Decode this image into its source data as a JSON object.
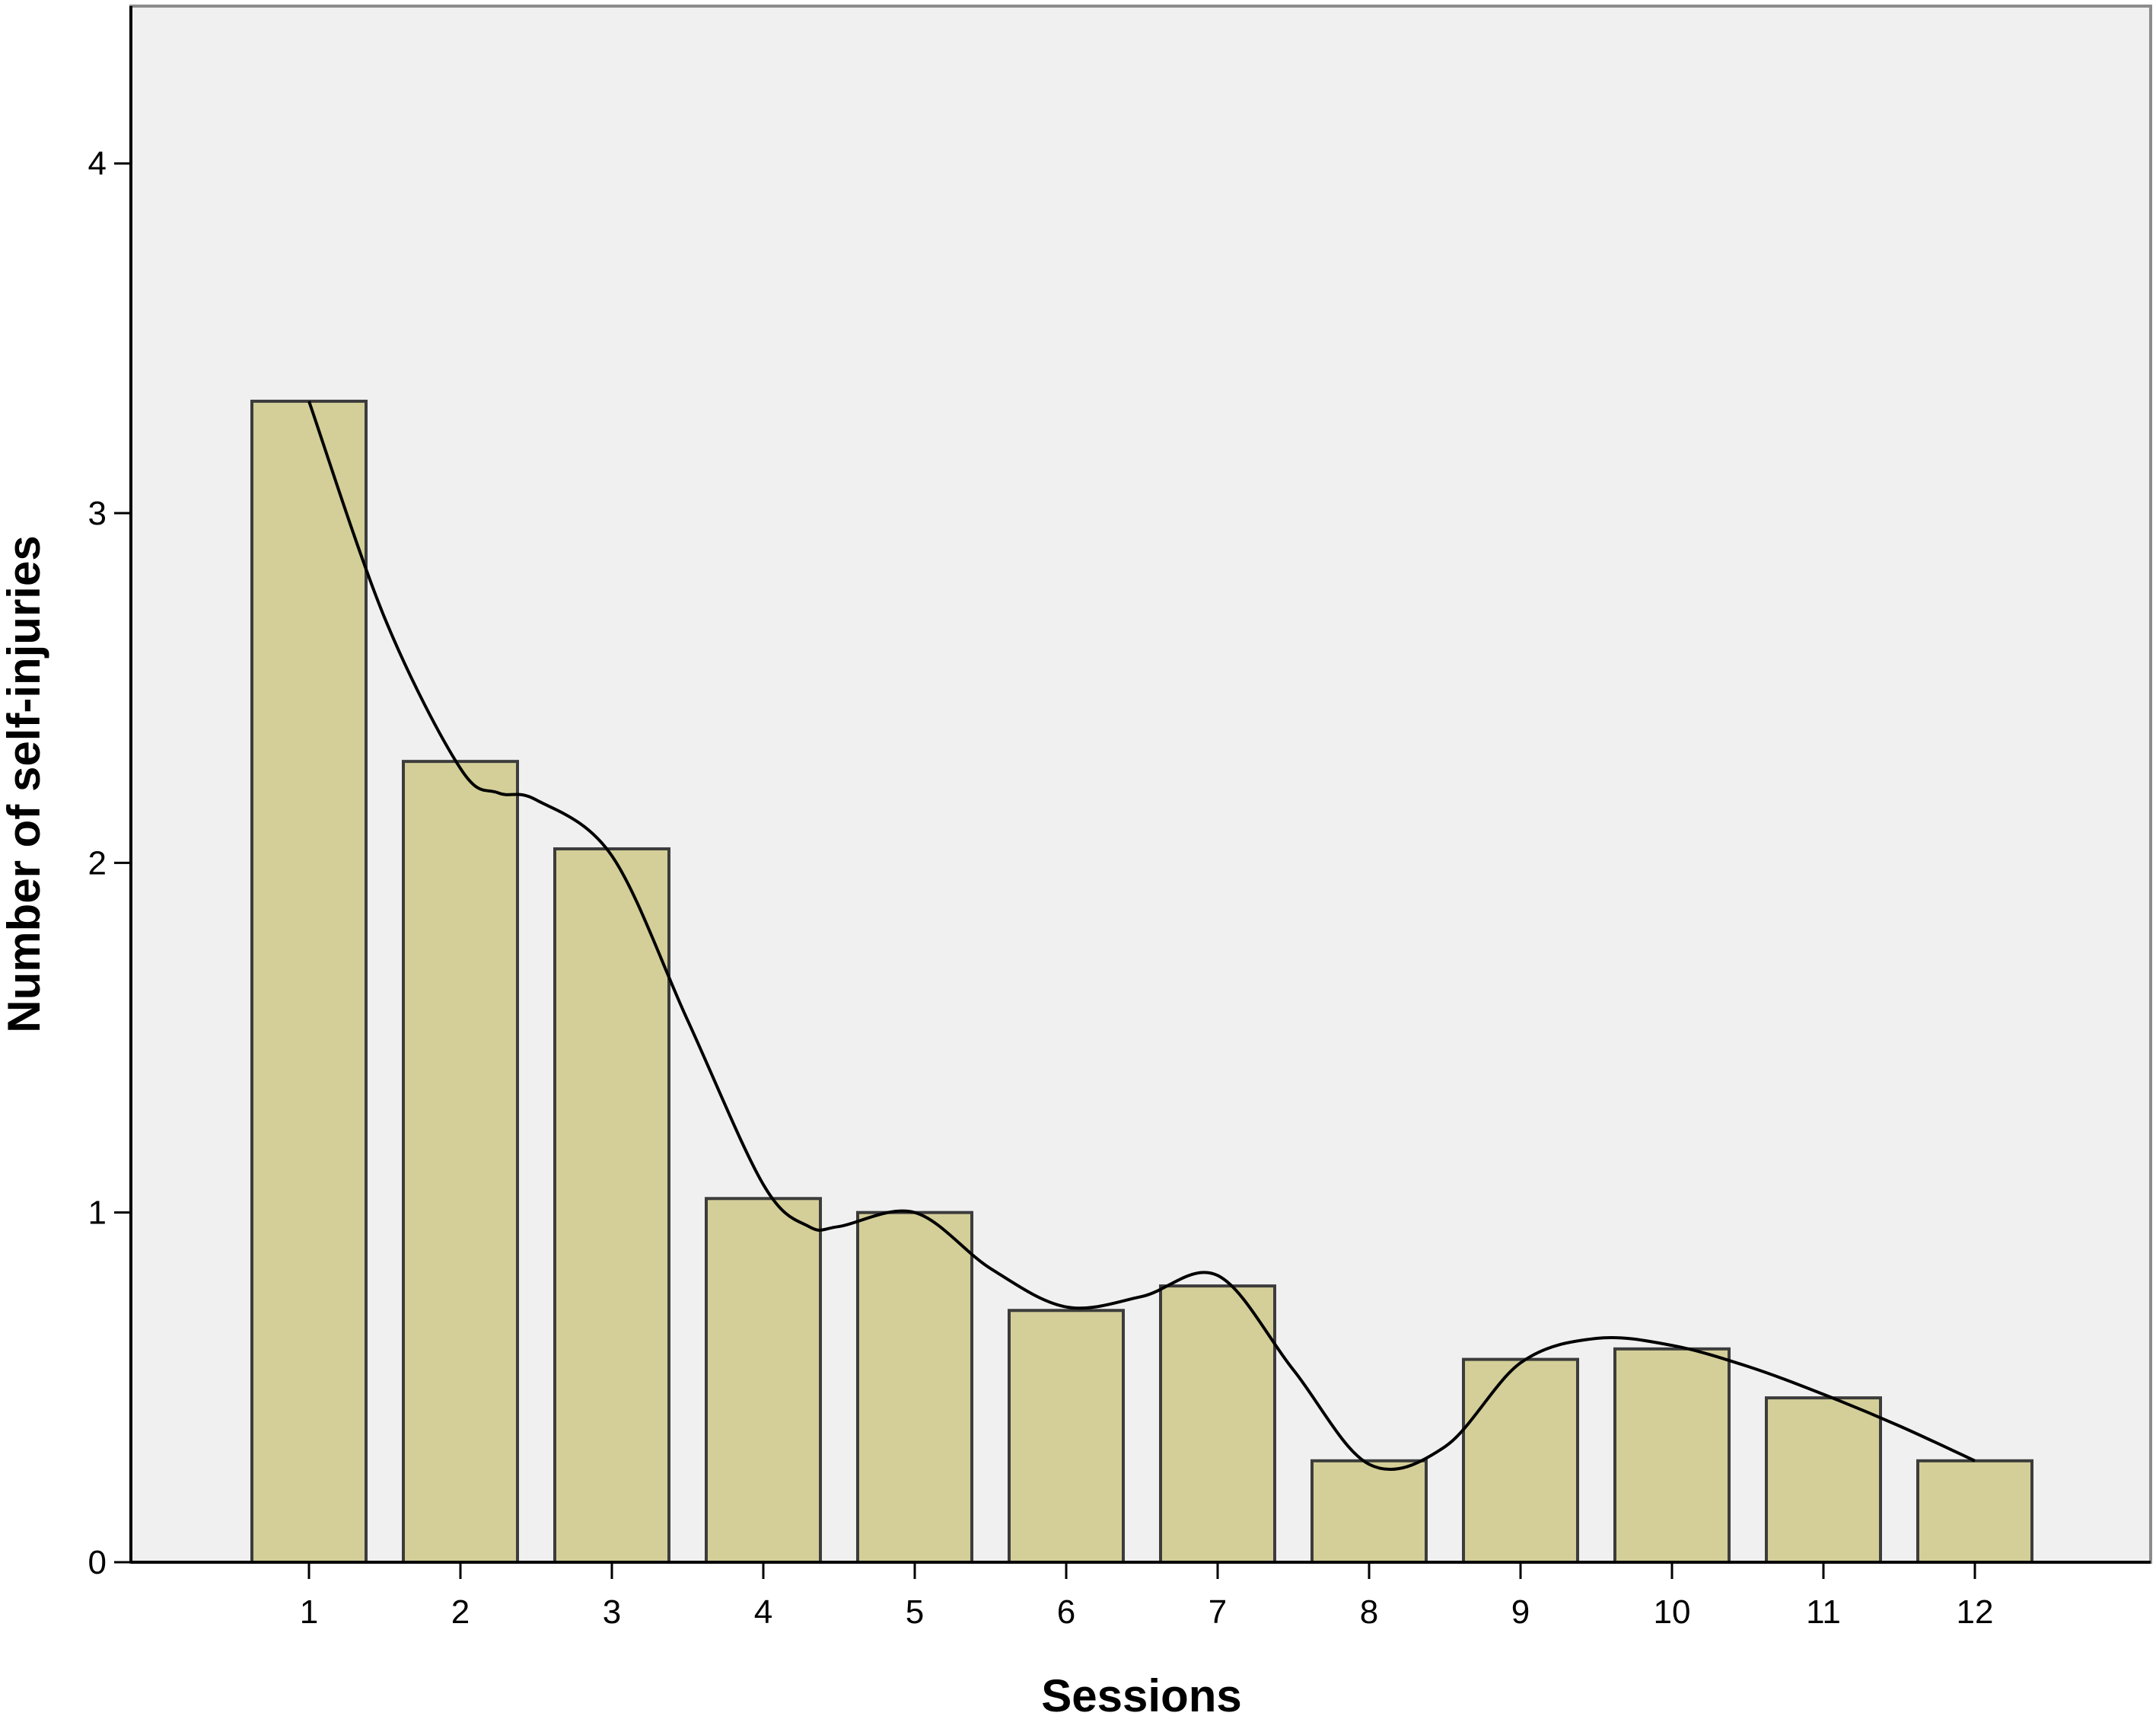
{
  "chart_data": {
    "type": "bar",
    "title": "",
    "xlabel": "Sessions",
    "ylabel": "Number of self-injuries",
    "categories": [
      "1",
      "2",
      "3",
      "4",
      "5",
      "6",
      "7",
      "8",
      "9",
      "10",
      "11",
      "12"
    ],
    "values": [
      3.32,
      2.29,
      2.04,
      1.04,
      1.0,
      0.72,
      0.79,
      0.29,
      0.58,
      0.61,
      0.47,
      0.29
    ],
    "ylim": [
      0,
      4.45
    ],
    "yticks": [
      "0",
      "1",
      "2",
      "3",
      "4"
    ],
    "grid": false,
    "legend": "none",
    "smooth_line": {
      "x": [
        1,
        1.5,
        2,
        2.25,
        2.5,
        3,
        3.5,
        4,
        4.3,
        4.5,
        5,
        5.5,
        6,
        6.5,
        7,
        7.5,
        8,
        8.5,
        9,
        9.5,
        10,
        10.5,
        11,
        11.5,
        12
      ],
      "y": [
        3.32,
        2.7,
        2.27,
        2.2,
        2.18,
        2.02,
        1.55,
        1.08,
        0.96,
        0.96,
        1.0,
        0.84,
        0.73,
        0.76,
        0.82,
        0.55,
        0.28,
        0.33,
        0.57,
        0.64,
        0.62,
        0.56,
        0.48,
        0.39,
        0.29
      ]
    },
    "colors": {
      "plot_background": "#f0f0f0",
      "bar_fill": "#d4cf98",
      "bar_stroke": "#3c3c3c",
      "line": "#000000",
      "axis": "#000000",
      "frame": "#8c8c8c"
    }
  }
}
